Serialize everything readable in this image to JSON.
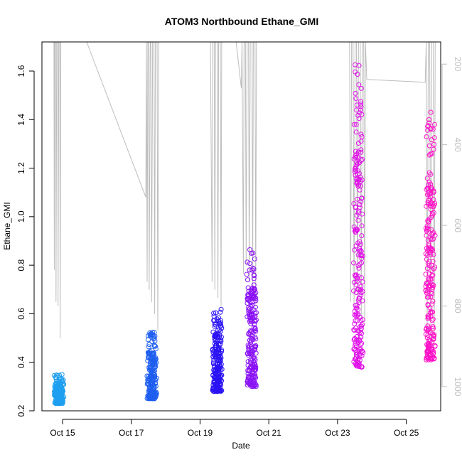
{
  "chart_data": {
    "type": "scatter",
    "title": "ATOM3 Northbound Ethane_GMI",
    "xlabel": "Date",
    "ylabel": "Ethane_GMI",
    "x_ticks": [
      "Oct 15",
      "Oct 17",
      "Oct 19",
      "Oct 21",
      "Oct 23",
      "Oct 25"
    ],
    "x_tick_days": [
      15,
      17,
      19,
      21,
      23,
      25
    ],
    "xlim_days": [
      14.4,
      26.0
    ],
    "ylim": [
      0.2,
      1.72
    ],
    "y_ticks": [
      0.2,
      0.4,
      0.6,
      0.8,
      1.0,
      1.2,
      1.4,
      1.6
    ],
    "y2_ticks": [
      200,
      400,
      600,
      800,
      1000
    ],
    "y2lim": [
      1060,
      145
    ],
    "y2_color": "#bdbdbd",
    "grid": false,
    "series": [
      {
        "day": 14.9,
        "color": "#1f9ff0",
        "values_min": 0.23,
        "values_max": 0.35
      },
      {
        "day": 17.6,
        "color": "#1e5ef0",
        "values_min": 0.25,
        "values_max": 0.53
      },
      {
        "day": 19.5,
        "color": "#2a12f5",
        "values_min": 0.28,
        "values_max": 0.62
      },
      {
        "day": 20.5,
        "color": "#8a12f5",
        "values_min": 0.3,
        "values_max": 0.88
      },
      {
        "day": 23.6,
        "color": "#e012e8",
        "values_min": 0.38,
        "values_max": 1.66
      },
      {
        "day": 25.7,
        "color": "#ff12c8",
        "values_min": 0.41,
        "values_max": 1.46
      }
    ],
    "altitude_profile": [
      [
        14.72,
        60
      ],
      [
        14.75,
        60
      ],
      [
        14.76,
        710
      ],
      [
        14.77,
        60
      ],
      [
        14.8,
        60
      ],
      [
        14.81,
        790
      ],
      [
        14.83,
        60
      ],
      [
        14.86,
        60
      ],
      [
        14.87,
        800
      ],
      [
        14.89,
        60
      ],
      [
        14.92,
        60
      ],
      [
        14.93,
        880
      ],
      [
        14.95,
        60
      ],
      [
        15.7,
        60
      ],
      [
        17.42,
        530
      ],
      [
        17.44,
        60
      ],
      [
        17.46,
        740
      ],
      [
        17.48,
        60
      ],
      [
        17.5,
        60
      ],
      [
        17.52,
        760
      ],
      [
        17.55,
        60
      ],
      [
        17.57,
        60
      ],
      [
        17.59,
        790
      ],
      [
        17.62,
        60
      ],
      [
        17.66,
        60
      ],
      [
        17.68,
        820
      ],
      [
        17.7,
        60
      ],
      [
        17.75,
        60
      ],
      [
        17.77,
        860
      ],
      [
        17.8,
        60
      ],
      [
        19.3,
        60
      ],
      [
        19.35,
        740
      ],
      [
        19.37,
        60
      ],
      [
        19.41,
        60
      ],
      [
        19.43,
        760
      ],
      [
        19.45,
        60
      ],
      [
        19.5,
        60
      ],
      [
        19.52,
        780
      ],
      [
        19.54,
        60
      ],
      [
        19.59,
        60
      ],
      [
        19.61,
        800
      ],
      [
        19.63,
        60
      ],
      [
        20.05,
        60
      ],
      [
        20.2,
        260
      ],
      [
        20.22,
        60
      ],
      [
        20.26,
        720
      ],
      [
        20.28,
        60
      ],
      [
        20.32,
        60
      ],
      [
        20.34,
        700
      ],
      [
        20.37,
        60
      ],
      [
        20.41,
        60
      ],
      [
        20.43,
        740
      ],
      [
        20.46,
        60
      ],
      [
        20.51,
        60
      ],
      [
        20.53,
        760
      ],
      [
        20.55,
        60
      ],
      [
        20.6,
        60
      ],
      [
        20.62,
        780
      ],
      [
        20.64,
        60
      ],
      [
        23.35,
        60
      ],
      [
        23.38,
        790
      ],
      [
        23.41,
        60
      ],
      [
        23.45,
        60
      ],
      [
        23.48,
        800
      ],
      [
        23.51,
        60
      ],
      [
        23.55,
        60
      ],
      [
        23.58,
        810
      ],
      [
        23.61,
        60
      ],
      [
        23.66,
        60
      ],
      [
        23.69,
        830
      ],
      [
        23.72,
        60
      ],
      [
        23.76,
        60
      ],
      [
        23.79,
        840
      ],
      [
        23.81,
        60
      ],
      [
        23.85,
        238
      ],
      [
        25.55,
        245
      ],
      [
        25.58,
        60
      ],
      [
        25.61,
        860
      ],
      [
        25.64,
        60
      ],
      [
        25.68,
        60
      ],
      [
        25.71,
        880
      ],
      [
        25.74,
        60
      ],
      [
        25.78,
        60
      ],
      [
        25.81,
        900
      ],
      [
        25.84,
        60
      ]
    ]
  }
}
